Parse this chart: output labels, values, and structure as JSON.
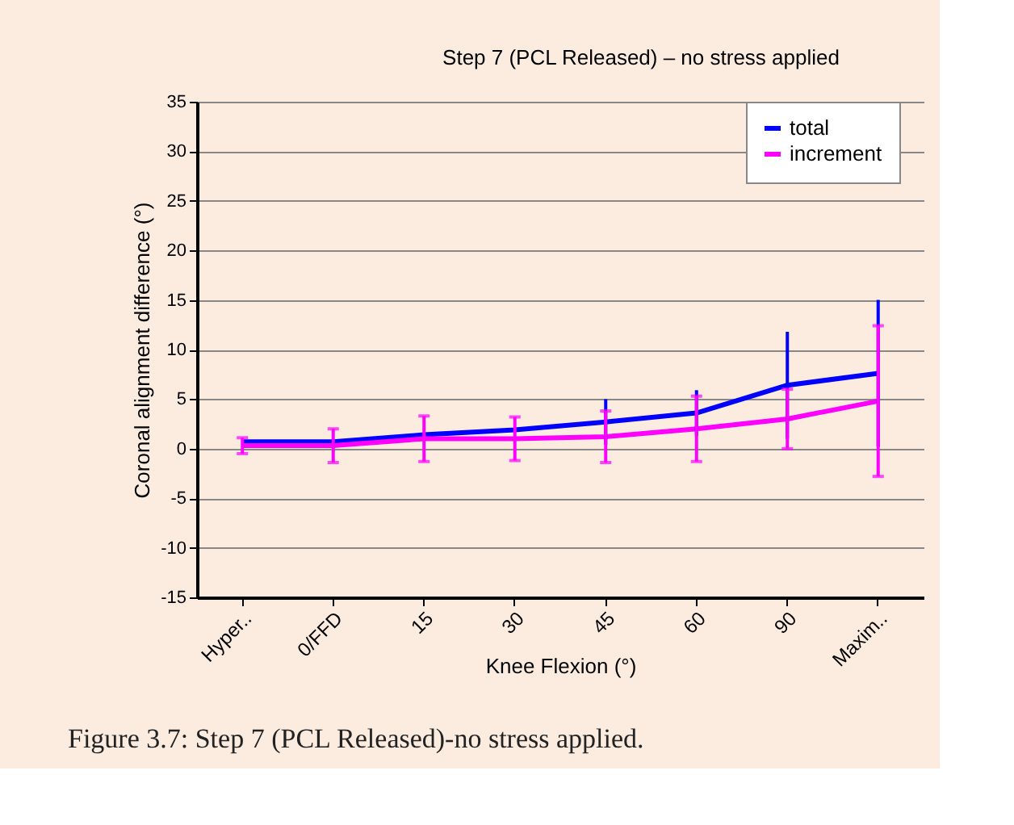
{
  "chart_data": {
    "type": "line",
    "title": "Step 7 (PCL Released) – no stress applied",
    "xlabel": "Knee Flexion (°)",
    "ylabel": "Coronal alignment difference (°)",
    "categories": [
      "Hyper..",
      "0/FFD",
      "15",
      "30",
      "45",
      "60",
      "90",
      "Maxim.."
    ],
    "series": [
      {
        "name": "total",
        "color": "#0000ff",
        "values": [
          0.7,
          0.7,
          1.4,
          1.9,
          2.7,
          3.6,
          6.4,
          7.6
        ],
        "errors": [
          null,
          null,
          null,
          null,
          2.3,
          2.3,
          5.4,
          7.4
        ]
      },
      {
        "name": "increment",
        "color": "#ff00ff",
        "values": [
          0.3,
          0.3,
          1.0,
          1.0,
          1.2,
          2.0,
          3.0,
          4.8
        ],
        "errors": [
          0.8,
          1.7,
          2.3,
          2.2,
          2.6,
          3.3,
          3.0,
          7.6
        ]
      }
    ],
    "ylim": [
      -15,
      35
    ],
    "yticks": [
      -15,
      -10,
      -5,
      0,
      5,
      10,
      15,
      20,
      25,
      30,
      35
    ],
    "grid": "y",
    "legend": "right",
    "line_style": "solid",
    "marker": "none",
    "annotations": [
      "Figure 3.7: Step 7 (PCL Released)-no stress applied."
    ]
  }
}
